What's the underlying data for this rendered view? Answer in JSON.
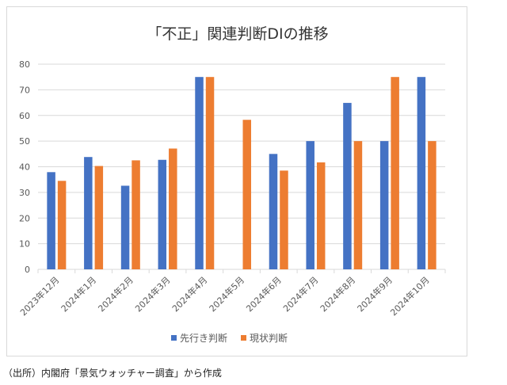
{
  "chart_data": {
    "type": "bar",
    "title": "「不正」関連判断DIの推移",
    "categories": [
      "2023年12月",
      "2024年1月",
      "2024年2月",
      "2024年3月",
      "2024年4月",
      "2024年5月",
      "2024年6月",
      "2024年7月",
      "2024年8月",
      "2024年9月",
      "2024年10月"
    ],
    "series": [
      {
        "name": "先行き判断",
        "color": "#4472c4",
        "values": [
          37.9,
          43.8,
          32.6,
          42.7,
          75,
          null,
          45,
          50,
          64.9,
          50,
          75
        ]
      },
      {
        "name": "現状判断",
        "color": "#ed7d31",
        "values": [
          34.5,
          40.3,
          42.5,
          47.1,
          75,
          58.3,
          38.5,
          41.7,
          50,
          75,
          50
        ]
      }
    ],
    "ylim": [
      0,
      80
    ],
    "yticks": [
      0,
      10,
      20,
      30,
      40,
      50,
      60,
      70,
      80
    ],
    "grid": true,
    "legend": "bottom"
  },
  "source": "（出所）内閣府「景気ウォッチャー調査」から作成"
}
